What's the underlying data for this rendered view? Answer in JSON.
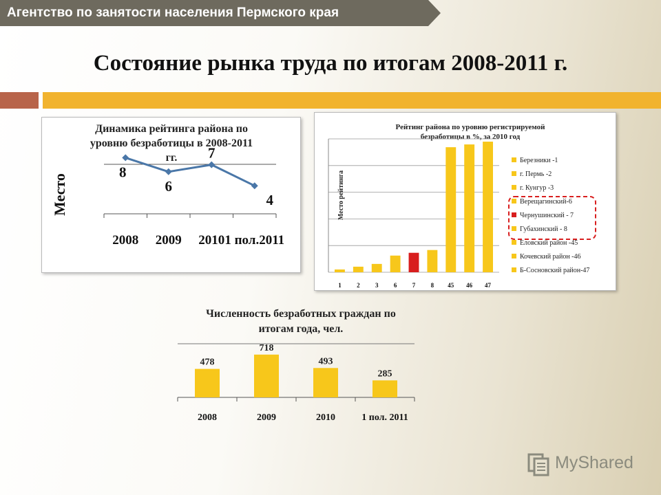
{
  "header": {
    "banner_text": "Агентство по занятости населения Пермского края",
    "title": "Состояние рынка труда по итогам 2008-2011 г."
  },
  "colors": {
    "banner": "#6e6a5e",
    "accent_gold": "#f1b32e",
    "accent_brown": "#b8644a",
    "bar_yellow": "#f7c71b",
    "bar_red": "#d81e1e",
    "line_blue": "#4a77a8"
  },
  "logo": {
    "text": "MyShared",
    "icon": "document-stack-icon"
  },
  "chart_data": [
    {
      "type": "line",
      "title": "Динамика рейтинга района по уровню безработицы в 2008-2011 гг.",
      "ylabel": "Место",
      "categories": [
        "2008",
        "2009",
        "2010",
        "1 пол.2011"
      ],
      "values": [
        8,
        6,
        7,
        4
      ],
      "ylim": [
        0,
        10
      ],
      "grid": true
    },
    {
      "type": "bar",
      "title": "Рейтинг района по уровню регистрируемой безработицы в %, за 2010 год",
      "ylabel": "Место рейтинга",
      "categories": [
        "1",
        "2",
        "3",
        "6",
        "7",
        "8",
        "45",
        "46",
        "47"
      ],
      "values": [
        1,
        2,
        3,
        6,
        7,
        8,
        45,
        46,
        47
      ],
      "highlight_index": 4,
      "ylim": [
        0,
        48
      ],
      "grid": true,
      "legend_position": "right",
      "legend": [
        "Березники -1",
        "г. Пермь -2",
        "г. Кунгур -3",
        "Верещагинский-6",
        "Чернушинский - 7",
        "Губахинский - 8",
        "Еловский район -45",
        "Кочевский район -46",
        "Б-Сосновский район-47"
      ],
      "legend_boxed": [
        3,
        4,
        5
      ]
    },
    {
      "type": "bar",
      "title": "Численность безработных граждан по итогам года, чел.",
      "categories": [
        "2008",
        "2009",
        "2010",
        "1 пол. 2011"
      ],
      "values": [
        478,
        718,
        493,
        285
      ],
      "ylim": [
        0,
        900
      ],
      "grid": true
    }
  ]
}
